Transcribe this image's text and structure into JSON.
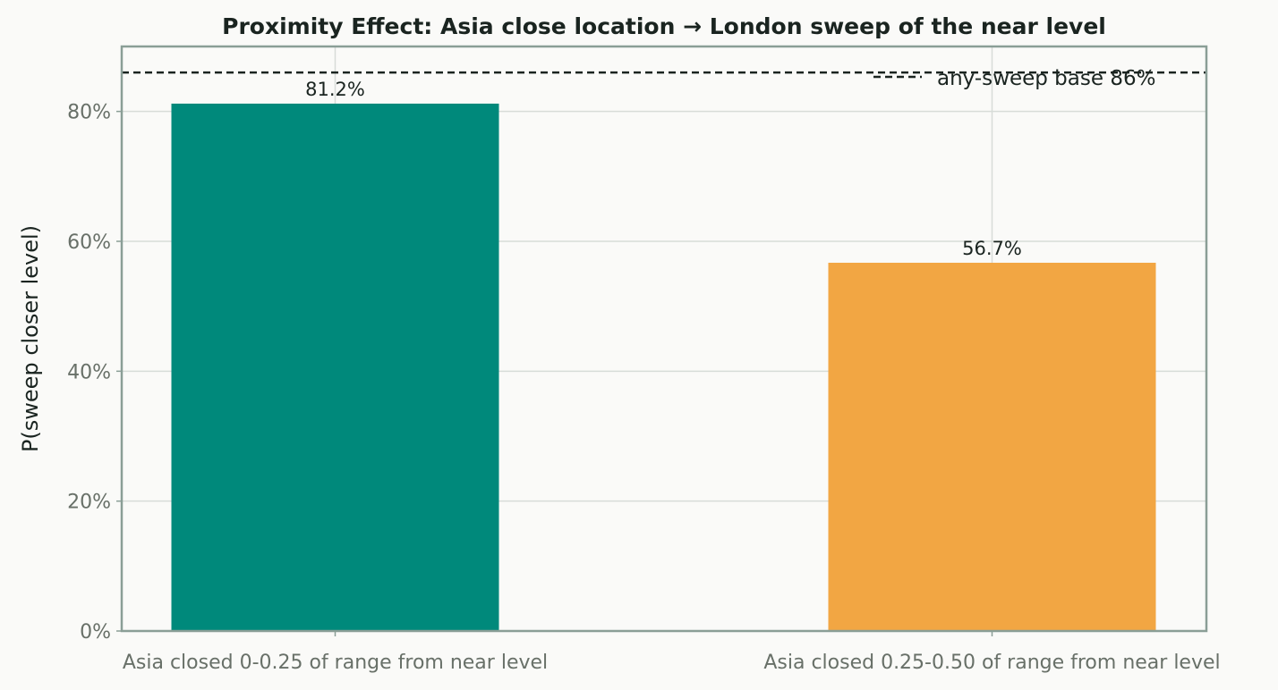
{
  "chart_data": {
    "type": "bar",
    "title": "Proximity Effect: Asia close location → London sweep of the near level",
    "xlabel": "",
    "ylabel": "P(sweep closer level)",
    "categories": [
      "Asia closed 0-0.25 of range from near level",
      "Asia closed 0.25-0.50 of range from near level"
    ],
    "values": [
      81.2,
      56.7
    ],
    "data_labels": [
      "81.2%",
      "56.7%"
    ],
    "bar_colors": [
      "#00897b",
      "#f2a643"
    ],
    "ylim": [
      0,
      90
    ],
    "yticks": [
      0,
      20,
      40,
      60,
      80
    ],
    "ytick_labels": [
      "0%",
      "20%",
      "40%",
      "60%",
      "80%"
    ],
    "grid": true,
    "reference_line": {
      "value": 86,
      "label": "any-sweep base 86%",
      "style": "dashed",
      "color": "#1a2420"
    },
    "legend_placement": "top-right",
    "colors": {
      "background": "#fafaf8",
      "axes_border": "#8a9e96",
      "grid": "#d7dcd8"
    }
  }
}
